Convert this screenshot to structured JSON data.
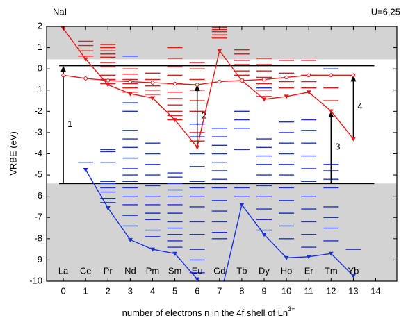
{
  "chart_data": {
    "type": "line",
    "title": "NaI",
    "subtitle": "U=6,25",
    "ylabel": "VRBE (eV)",
    "xlabel": "number of electrons n in the 4f shell of Ln",
    "xlabel_sup": "3+",
    "xlim": [
      -0.75,
      14.95
    ],
    "ylim": [
      -10,
      2
    ],
    "xticks": [
      0,
      1,
      2,
      3,
      4,
      5,
      6,
      7,
      8,
      9,
      10,
      11,
      12,
      13,
      14
    ],
    "yticks": [
      -10,
      -9,
      -8,
      -7,
      -6,
      -5,
      -4,
      -3,
      -2,
      -1,
      0,
      1,
      2
    ],
    "x": [
      0,
      1,
      2,
      3,
      4,
      5,
      6,
      7,
      8,
      9,
      10,
      11,
      12,
      13
    ],
    "elements": [
      "La",
      "Ce",
      "Pr",
      "Nd",
      "Pm",
      "Sm",
      "Eu",
      "Gd",
      "Tb",
      "Dy",
      "Ho",
      "Er",
      "Tm",
      "Yb"
    ],
    "element_y": -9.55,
    "cb_bottom": 0.45,
    "box_top": 0.15,
    "vb_top": -5.4,
    "band_color": "#d3d3d3",
    "series": [
      {
        "color": "#e8191b",
        "marker": "triangle",
        "values": [
          1.9,
          0.46,
          -0.75,
          -1.17,
          -1.37,
          -2.4,
          -3.69,
          0.86,
          -0.55,
          -1.43,
          -1.3,
          -1.1,
          -1.99,
          -3.3
        ]
      },
      {
        "color": "#e8191b",
        "marker": "circle",
        "values": [
          -0.3,
          -0.45,
          -0.55,
          -0.6,
          -0.65,
          -0.7,
          -0.75,
          -0.6,
          -0.55,
          -0.5,
          -0.4,
          -0.3,
          -0.3,
          -0.3
        ]
      },
      {
        "color": "#1a2fe0",
        "marker": "triangle",
        "values": [
          null,
          -4.75,
          -6.55,
          -8.05,
          -8.5,
          -8.7,
          -9.9,
          -10.9,
          -6.4,
          -7.8,
          -8.9,
          -8.85,
          -8.7,
          -9.75
        ]
      }
    ],
    "levels": [
      {
        "color": "#e8191b",
        "values": [
          [],
          [
            1.3,
            1.1,
            0.85,
            0.6
          ],
          [
            1.15,
            1.0,
            0.85,
            0.7,
            0.55,
            0.3,
            0.1,
            -0.3,
            -0.5,
            -0.7
          ],
          [
            0.0,
            -0.25,
            -0.5,
            -0.7,
            -0.9,
            -1.1
          ],
          [
            -0.2,
            -0.5,
            -0.8,
            -1.0,
            -1.2
          ],
          [
            1.0,
            0.5,
            0.1,
            -0.3,
            -0.7,
            -1.1,
            -1.4,
            -1.7,
            -2.0,
            -2.2,
            -2.4
          ],
          [
            0.3,
            0.0,
            -0.5,
            -1.0,
            -1.5,
            -2.0,
            -2.6,
            -3.0,
            -3.4
          ],
          [
            1.95,
            1.85,
            1.75,
            1.6,
            1.45
          ],
          [
            0.9,
            0.7,
            0.4,
            0.2,
            -0.1,
            -0.3
          ],
          [
            0.5,
            0.2,
            -0.1,
            -0.4,
            -0.7,
            -1.0,
            -1.3
          ],
          [
            0.4,
            -0.2,
            -0.6,
            -0.9
          ],
          [
            0.4,
            -0.3,
            -0.6,
            -0.9
          ],
          [
            -0.9,
            -1.5
          ],
          []
        ]
      },
      {
        "color": "#1a2fe0",
        "values": [
          [],
          [
            -4.4
          ],
          [
            -3.8,
            -3.9,
            -4.4,
            -5.3,
            -5.4,
            -5.6,
            -5.8,
            -6.1,
            -6.3
          ],
          [
            0.6,
            -1.6,
            -2.0,
            -2.9,
            -3.3,
            -3.7,
            -4.2,
            -4.7,
            -5.0,
            -5.3,
            -5.6,
            -6.0,
            -6.4,
            -6.9,
            -7.4
          ],
          [
            -3.5,
            -4.0,
            -4.5,
            -5.0,
            -5.5,
            -6.0,
            -6.4,
            -6.8,
            -7.1,
            -7.6,
            -7.9
          ],
          [
            -4.9,
            -5.1,
            -5.4,
            -5.7,
            -6.0,
            -6.4,
            -6.8,
            -7.2,
            -7.5,
            -7.8,
            -8.1,
            -8.4
          ],
          [
            -2.6,
            -3.2,
            -4.0,
            -4.6,
            -5.3,
            -5.6,
            -6.0,
            -6.5,
            -7.2,
            -7.8,
            -8.5,
            -9.0,
            -9.6
          ],
          [
            -2.8,
            -3.2,
            -3.6,
            -4.0,
            -4.4,
            -4.8,
            -5.2,
            -5.6,
            -6.2,
            -6.7,
            -7.2,
            -7.7,
            -8.0
          ],
          [
            -2.0,
            -2.4,
            -2.8,
            -3.8,
            -5.6,
            -6.0
          ],
          [
            -0.9,
            -3.3,
            -3.7,
            -4.1,
            -4.5,
            -5.0,
            -5.5,
            -6.0,
            -6.6,
            -7.1,
            -7.6
          ],
          [
            -2.5,
            -3.0,
            -3.5,
            -4.0,
            -4.5,
            -5.0,
            -5.6,
            -6.2,
            -6.8,
            -7.4,
            -8.0
          ],
          [
            -2.4,
            -2.9,
            -3.5,
            -4.1,
            -4.7,
            -5.3,
            -6.0,
            -6.6,
            -7.2,
            -7.8,
            -8.4
          ],
          [
            0.0,
            -4.5,
            -4.8,
            -5.2,
            -5.6,
            -6.5,
            -7.0,
            -7.5,
            -8.1
          ],
          [
            -8.5
          ]
        ]
      }
    ],
    "arrows": [
      {
        "label": "1",
        "x": 0,
        "from": -5.4,
        "to": 0.15
      },
      {
        "label": "2",
        "x": 6,
        "from": -3.69,
        "to": -0.75
      },
      {
        "label": "3",
        "x": 12,
        "from": -5.4,
        "to": -1.99
      },
      {
        "label": "4",
        "x": 13,
        "from": -3.3,
        "to": -0.3
      }
    ]
  }
}
